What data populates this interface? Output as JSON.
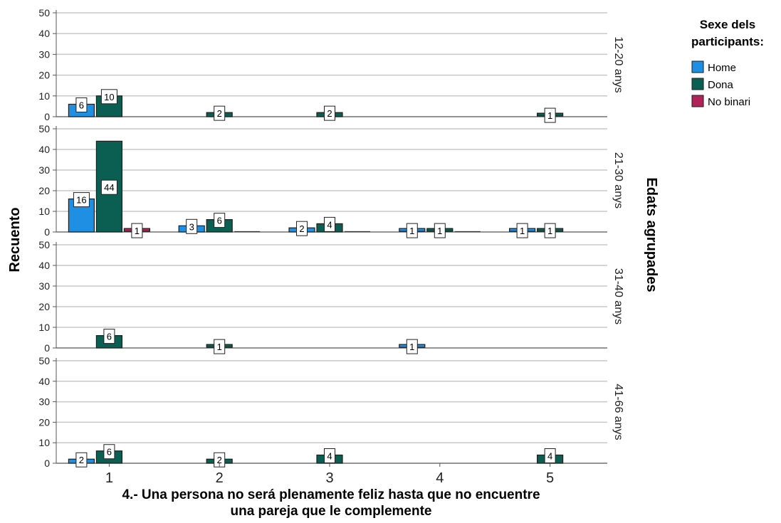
{
  "chart_data": {
    "type": "bar",
    "title": "",
    "xlabel": "4.- Una persona no será plenamente feliz hasta que no encuentre una pareja que le complemente",
    "xlabel_lines": [
      "4.- Una persona no será plenamente feliz hasta que no encuentre",
      "una pareja que le complemente"
    ],
    "ylabel": "Recuento",
    "panel_axis_label": "Edats agrupades",
    "categories": [
      "1",
      "2",
      "3",
      "4",
      "5"
    ],
    "y_ticks": [
      0,
      10,
      20,
      30,
      40,
      50
    ],
    "ylim": [
      0,
      52
    ],
    "grid": true,
    "legend": {
      "title_lines": [
        "Sexe dels",
        "participants:"
      ],
      "position": "top-right"
    },
    "series": [
      {
        "name": "Home",
        "color": "#1f8fe3"
      },
      {
        "name": "Dona",
        "color": "#0b5f52"
      },
      {
        "name": "No binari",
        "color": "#b0245a"
      }
    ],
    "panels": [
      {
        "label": "12-20 anys",
        "values": {
          "Home": [
            6,
            null,
            null,
            null,
            null
          ],
          "Dona": [
            10,
            2,
            2,
            null,
            1
          ],
          "No binari": [
            null,
            null,
            null,
            null,
            null
          ]
        }
      },
      {
        "label": "21-30 anys",
        "values": {
          "Home": [
            16,
            3,
            2,
            1,
            1
          ],
          "Dona": [
            44,
            6,
            4,
            1,
            1
          ],
          "No binari": [
            1,
            0,
            0,
            0,
            null
          ]
        }
      },
      {
        "label": "31-40 anys",
        "values": {
          "Home": [
            null,
            null,
            null,
            1,
            null
          ],
          "Dona": [
            6,
            1,
            null,
            null,
            null
          ],
          "No binari": [
            null,
            null,
            null,
            null,
            null
          ]
        }
      },
      {
        "label": "41-66 anys",
        "values": {
          "Home": [
            2,
            null,
            null,
            null,
            null
          ],
          "Dona": [
            6,
            2,
            4,
            null,
            4
          ],
          "No binari": [
            null,
            null,
            null,
            null,
            null
          ]
        }
      }
    ]
  }
}
